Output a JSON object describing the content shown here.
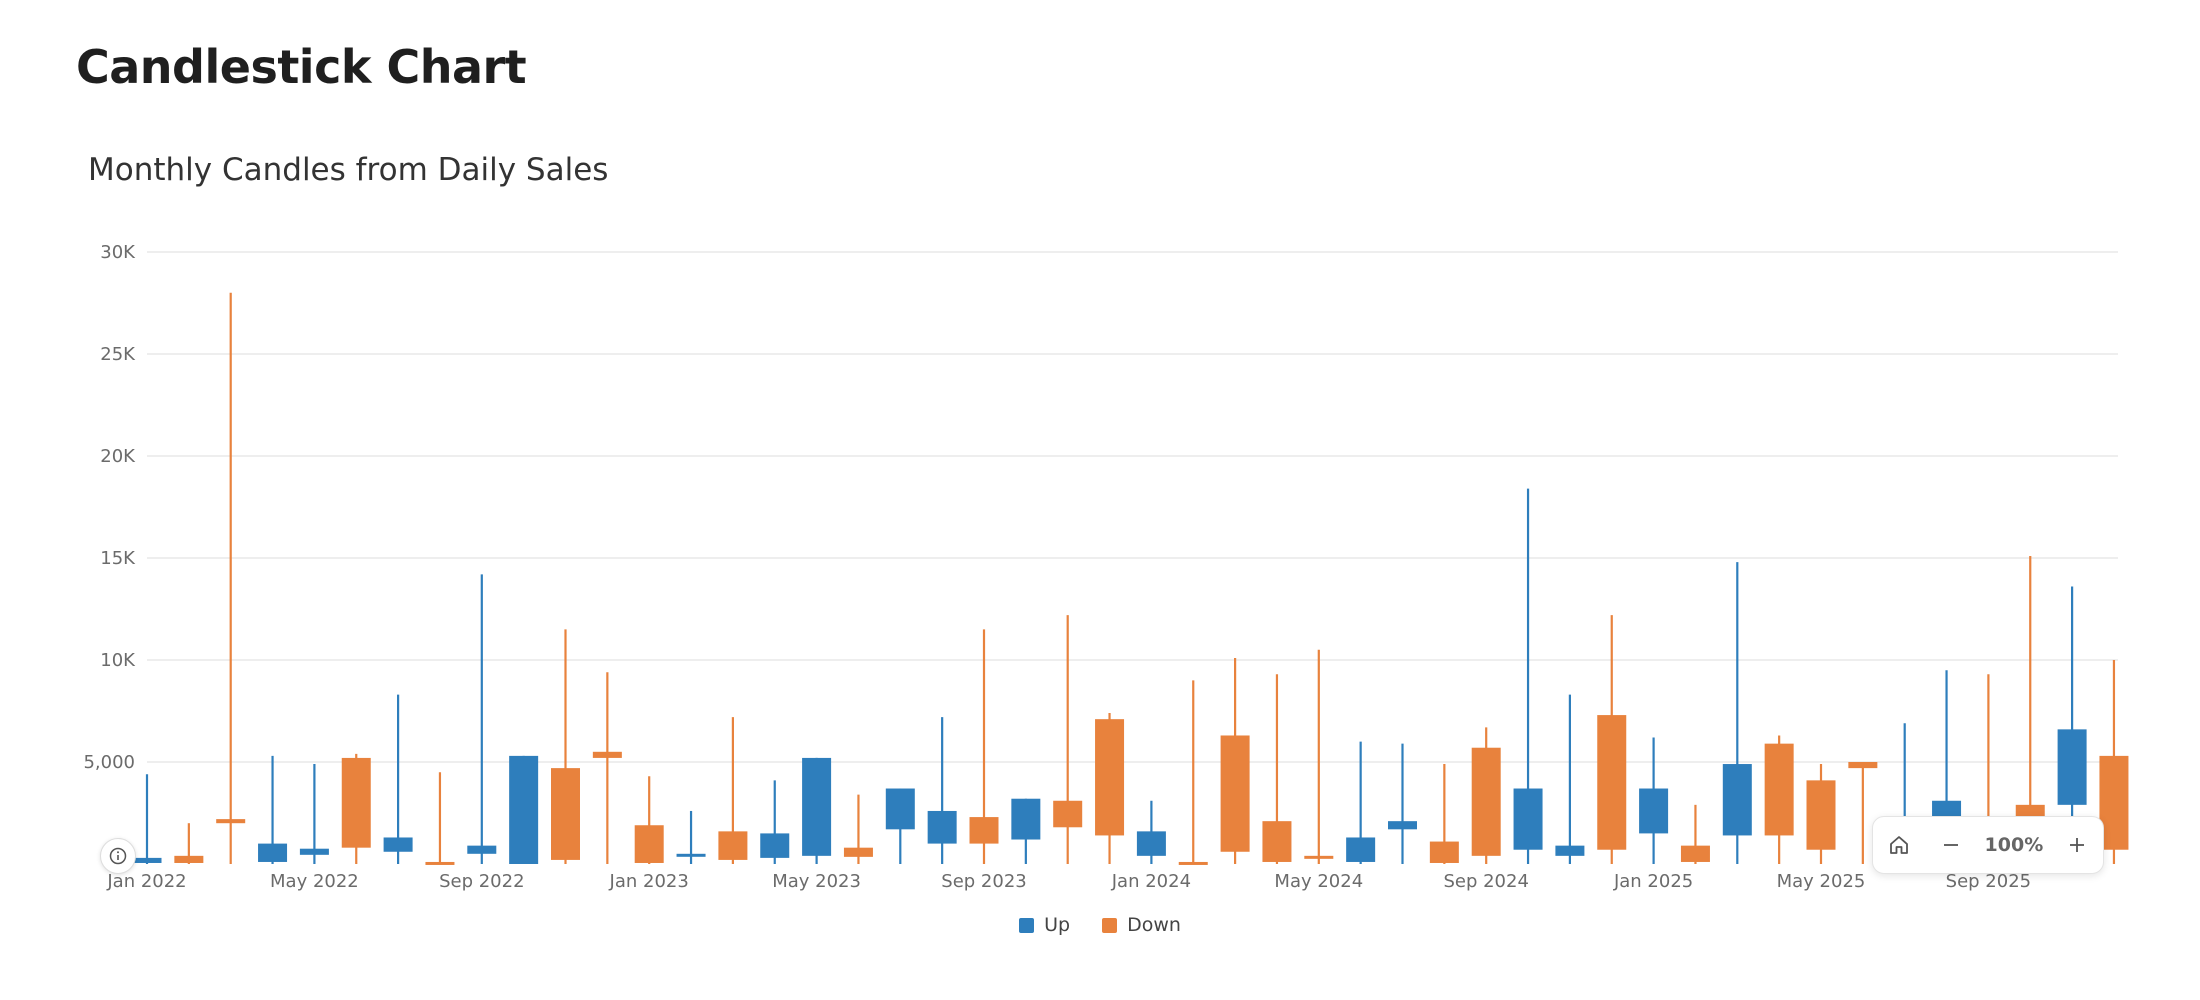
{
  "page": {
    "title": "Candlestick Chart"
  },
  "chart_data": {
    "type": "candlestick",
    "title": "Monthly Candles from Daily Sales",
    "xlabel": "",
    "ylabel": "",
    "ylim": [
      0,
      30000
    ],
    "yticks": [
      {
        "value": 5000,
        "label": "5,000"
      },
      {
        "value": 10000,
        "label": "10K"
      },
      {
        "value": 15000,
        "label": "15K"
      },
      {
        "value": 20000,
        "label": "20K"
      },
      {
        "value": 25000,
        "label": "25K"
      },
      {
        "value": 30000,
        "label": "30K"
      }
    ],
    "xticks": [
      {
        "index": 0,
        "label": "Jan 2022"
      },
      {
        "index": 4,
        "label": "May 2022"
      },
      {
        "index": 8,
        "label": "Sep 2022"
      },
      {
        "index": 12,
        "label": "Jan 2023"
      },
      {
        "index": 16,
        "label": "May 2023"
      },
      {
        "index": 20,
        "label": "Sep 2023"
      },
      {
        "index": 24,
        "label": "Jan 2024"
      },
      {
        "index": 28,
        "label": "May 2024"
      },
      {
        "index": 32,
        "label": "Sep 2024"
      },
      {
        "index": 36,
        "label": "Jan 2025"
      },
      {
        "index": 40,
        "label": "May 2025"
      },
      {
        "index": 44,
        "label": "Sep 2025"
      }
    ],
    "grid": true,
    "legend_position": "bottom-center",
    "series": [
      {
        "name": "Up",
        "color": "#2e7ebc"
      },
      {
        "name": "Down",
        "color": "#e8823d"
      }
    ],
    "candles": [
      {
        "month": "Jan 2022",
        "open": 50,
        "close": 300,
        "high": 4400,
        "low": 0
      },
      {
        "month": "Feb 2022",
        "open": 400,
        "close": 50,
        "high": 2000,
        "low": 0
      },
      {
        "month": "Mar 2022",
        "open": 2200,
        "close": 2000,
        "high": 28000,
        "low": 0
      },
      {
        "month": "Apr 2022",
        "open": 100,
        "close": 1000,
        "high": 5300,
        "low": 0
      },
      {
        "month": "May 2022",
        "open": 450,
        "close": 750,
        "high": 4900,
        "low": 0
      },
      {
        "month": "Jun 2022",
        "open": 5200,
        "close": 800,
        "high": 5400,
        "low": 0
      },
      {
        "month": "Jul 2022",
        "open": 600,
        "close": 1300,
        "high": 8300,
        "low": 0
      },
      {
        "month": "Aug 2022",
        "open": 100,
        "close": 50,
        "high": 4500,
        "low": 0
      },
      {
        "month": "Sep 2022",
        "open": 500,
        "close": 900,
        "high": 14200,
        "low": 0
      },
      {
        "month": "Oct 2022",
        "open": 0,
        "close": 5300,
        "high": 5300,
        "low": 0
      },
      {
        "month": "Nov 2022",
        "open": 4700,
        "close": 200,
        "high": 11500,
        "low": 0
      },
      {
        "month": "Dec 2022",
        "open": 5500,
        "close": 5200,
        "high": 9400,
        "low": 0
      },
      {
        "month": "Jan 2023",
        "open": 1900,
        "close": 50,
        "high": 4300,
        "low": 0
      },
      {
        "month": "Feb 2023",
        "open": 400,
        "close": 500,
        "high": 2600,
        "low": 0
      },
      {
        "month": "Mar 2023",
        "open": 1600,
        "close": 200,
        "high": 7200,
        "low": 0
      },
      {
        "month": "Apr 2023",
        "open": 300,
        "close": 1500,
        "high": 4100,
        "low": 0
      },
      {
        "month": "May 2023",
        "open": 400,
        "close": 5200,
        "high": 5200,
        "low": 0
      },
      {
        "month": "Jun 2023",
        "open": 800,
        "close": 350,
        "high": 3400,
        "low": 0
      },
      {
        "month": "Jul 2023",
        "open": 1700,
        "close": 3700,
        "high": 3700,
        "low": 0
      },
      {
        "month": "Aug 2023",
        "open": 1000,
        "close": 2600,
        "high": 7200,
        "low": 0
      },
      {
        "month": "Sep 2023",
        "open": 2300,
        "close": 1000,
        "high": 11500,
        "low": 0
      },
      {
        "month": "Oct 2023",
        "open": 1200,
        "close": 3200,
        "high": 3200,
        "low": 0
      },
      {
        "month": "Nov 2023",
        "open": 3100,
        "close": 1800,
        "high": 12200,
        "low": 0
      },
      {
        "month": "Dec 2023",
        "open": 7100,
        "close": 1400,
        "high": 7400,
        "low": 0
      },
      {
        "month": "Jan 2024",
        "open": 400,
        "close": 1600,
        "high": 3100,
        "low": 0
      },
      {
        "month": "Feb 2024",
        "open": 100,
        "close": 0,
        "high": 9000,
        "low": 0
      },
      {
        "month": "Mar 2024",
        "open": 6300,
        "close": 600,
        "high": 10100,
        "low": 0
      },
      {
        "month": "Apr 2024",
        "open": 2100,
        "close": 100,
        "high": 9300,
        "low": 0
      },
      {
        "month": "May 2024",
        "open": 400,
        "close": 300,
        "high": 10500,
        "low": 0
      },
      {
        "month": "Jun 2024",
        "open": 100,
        "close": 1300,
        "high": 6000,
        "low": 0
      },
      {
        "month": "Jul 2024",
        "open": 1700,
        "close": 2100,
        "high": 5900,
        "low": 0
      },
      {
        "month": "Aug 2024",
        "open": 1100,
        "close": 50,
        "high": 4900,
        "low": 0
      },
      {
        "month": "Sep 2024",
        "open": 5700,
        "close": 400,
        "high": 6700,
        "low": 0
      },
      {
        "month": "Oct 2024",
        "open": 700,
        "close": 3700,
        "high": 18400,
        "low": 0
      },
      {
        "month": "Nov 2024",
        "open": 400,
        "close": 900,
        "high": 8300,
        "low": 0
      },
      {
        "month": "Dec 2024",
        "open": 7300,
        "close": 700,
        "high": 12200,
        "low": 0
      },
      {
        "month": "Jan 2025",
        "open": 1500,
        "close": 3700,
        "high": 6200,
        "low": 0
      },
      {
        "month": "Feb 2025",
        "open": 900,
        "close": 100,
        "high": 2900,
        "low": 0
      },
      {
        "month": "Mar 2025",
        "open": 1400,
        "close": 4900,
        "high": 14800,
        "low": 0
      },
      {
        "month": "Apr 2025",
        "open": 5900,
        "close": 1400,
        "high": 6300,
        "low": 0
      },
      {
        "month": "May 2025",
        "open": 4100,
        "close": 700,
        "high": 4900,
        "low": 0
      },
      {
        "month": "Jun 2025",
        "open": 5000,
        "close": 4700,
        "high": 5000,
        "low": 0
      },
      {
        "month": "Jul 2025",
        "open": 300,
        "close": 600,
        "high": 6900,
        "low": 0
      },
      {
        "month": "Aug 2025",
        "open": 1900,
        "close": 3100,
        "high": 9500,
        "low": 0
      },
      {
        "month": "Sep 2025",
        "open": 900,
        "close": 200,
        "high": 9300,
        "low": 0
      },
      {
        "month": "Oct 2025",
        "open": 2900,
        "close": 1500,
        "high": 15100,
        "low": 0
      },
      {
        "month": "Nov 2025",
        "open": 2900,
        "close": 6600,
        "high": 13600,
        "low": 0
      },
      {
        "month": "Dec 2025",
        "open": 5300,
        "close": 700,
        "high": 10000,
        "low": 0
      }
    ]
  },
  "legend": {
    "up_label": "Up",
    "down_label": "Down"
  },
  "zoom": {
    "level": "100%"
  },
  "icons": {
    "home": "home-icon",
    "zoom_out": "minus-icon",
    "zoom_in": "plus-icon",
    "info": "info-icon"
  }
}
